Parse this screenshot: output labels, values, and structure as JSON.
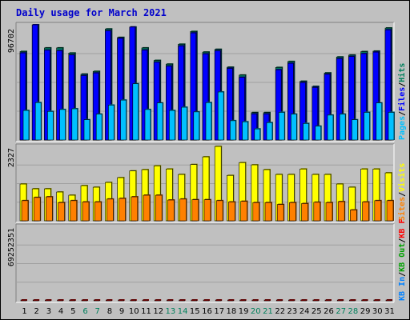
{
  "chart_data": {
    "type": "bar",
    "title": "Daily usage for March 2021",
    "days": [
      "1",
      "2",
      "3",
      "4",
      "5",
      "6",
      "7",
      "8",
      "9",
      "10",
      "11",
      "12",
      "13",
      "14",
      "15",
      "16",
      "17",
      "18",
      "19",
      "20",
      "21",
      "22",
      "23",
      "24",
      "25",
      "26",
      "27",
      "28",
      "29",
      "30",
      "31"
    ],
    "weekend_days": [
      "6",
      "7",
      "13",
      "14",
      "20",
      "21",
      "27",
      "28"
    ],
    "colors": {
      "hits": "#00805c",
      "files": "#0000ff",
      "pages": "#00c0ff",
      "visits": "#ffff00",
      "sites": "#ff8000",
      "kbin": "#0080ff",
      "kbout": "#00a000",
      "kbf": "#ff0000",
      "weekend": "#00805c",
      "weekday": "#000000"
    },
    "panels": [
      {
        "id": "top",
        "ymax_label": "96702",
        "ymax": 96702,
        "legend": [
          {
            "text": "Hits",
            "color": "#00805c"
          },
          {
            "text": "/",
            "color": "#000000"
          },
          {
            "text": "Files",
            "color": "#0000ff"
          },
          {
            "text": "/",
            "color": "#000000"
          },
          {
            "text": "Pages",
            "color": "#00c0ff"
          }
        ],
        "series": [
          {
            "name": "Hits",
            "color": "#00805c",
            "values": [
              74300,
              96700,
              77300,
              77300,
              73000,
              55300,
              57600,
              93200,
              86100,
              94800,
              77300,
              66800,
              63700,
              80400,
              91100,
              73800,
              76100,
              61100,
              54500,
              23000,
              23000,
              60900,
              65900,
              49300,
              45000,
              56300,
              69700,
              71300,
              74200,
              74600,
              94000
            ]
          },
          {
            "name": "Files",
            "color": "#0000ff",
            "values": [
              73100,
              96700,
              75400,
              75000,
              71400,
              54100,
              56300,
              91700,
              85300,
              94800,
              75500,
              65300,
              62100,
              79000,
              89900,
              72300,
              74900,
              60100,
              52600,
              21900,
              21900,
              59000,
              64400,
              48200,
              44100,
              55200,
              68300,
              70100,
              72500,
              73800,
              92500
            ]
          },
          {
            "name": "Pages",
            "color": "#00c0ff",
            "values": [
              24800,
              31400,
              24000,
              25600,
              26200,
              17000,
              21700,
              29300,
              33500,
              47200,
              25600,
              31100,
              24800,
              27500,
              23600,
              31400,
              40300,
              16200,
              15300,
              9300,
              14600,
              23200,
              21700,
              13900,
              11600,
              20900,
              21700,
              17000,
              23200,
              31100,
              23200
            ]
          }
        ]
      },
      {
        "id": "mid",
        "ymax_label": "2327",
        "ymax": 2327,
        "legend": [
          {
            "text": "Visits",
            "color": "#ffff00"
          },
          {
            "text": "/",
            "color": "#000000"
          },
          {
            "text": "Sites",
            "color": "#ff8000"
          }
        ],
        "series": [
          {
            "name": "Visits",
            "color": "#ffff00",
            "values": [
              1150,
              1000,
              1000,
              900,
              800,
              1100,
              1050,
              1200,
              1350,
              1560,
              1600,
              1720,
              1620,
              1450,
              1760,
              2000,
              2327,
              1420,
              1820,
              1750,
              1600,
              1450,
              1450,
              1620,
              1450,
              1450,
              1150,
              1050,
              1620,
              1620,
              1500
            ]
          },
          {
            "name": "Sites",
            "color": "#ff8000",
            "values": [
              630,
              730,
              750,
              570,
              630,
              590,
              590,
              680,
              700,
              750,
              800,
              800,
              650,
              680,
              660,
              660,
              630,
              590,
              610,
              570,
              570,
              510,
              570,
              540,
              580,
              570,
              600,
              340,
              590,
              630,
              630
            ]
          }
        ]
      },
      {
        "id": "bot",
        "ymax_label": "69252351",
        "ymax": 69252351,
        "legend": [
          {
            "text": "KB F",
            "color": "#ff0000"
          },
          {
            "text": "/",
            "color": "#000000"
          },
          {
            "text": "KB Out",
            "color": "#00a000"
          },
          {
            "text": "/",
            "color": "#000000"
          },
          {
            "text": "KB In",
            "color": "#0080ff"
          }
        ],
        "series": [
          {
            "name": "KB F",
            "color": "#ff0000",
            "values": [
              23900,
              59800,
              31200,
              39900,
              36200,
              11700,
              26300,
              69300,
              49800,
              26300,
              26300,
              12900,
              18300,
              31400,
              63100,
              32600,
              14400,
              31000,
              18300,
              11700,
              9200,
              14400,
              31200,
              26300,
              21600,
              18300,
              26300,
              18300,
              19300,
              14400,
              64500
            ]
          }
        ]
      }
    ]
  }
}
